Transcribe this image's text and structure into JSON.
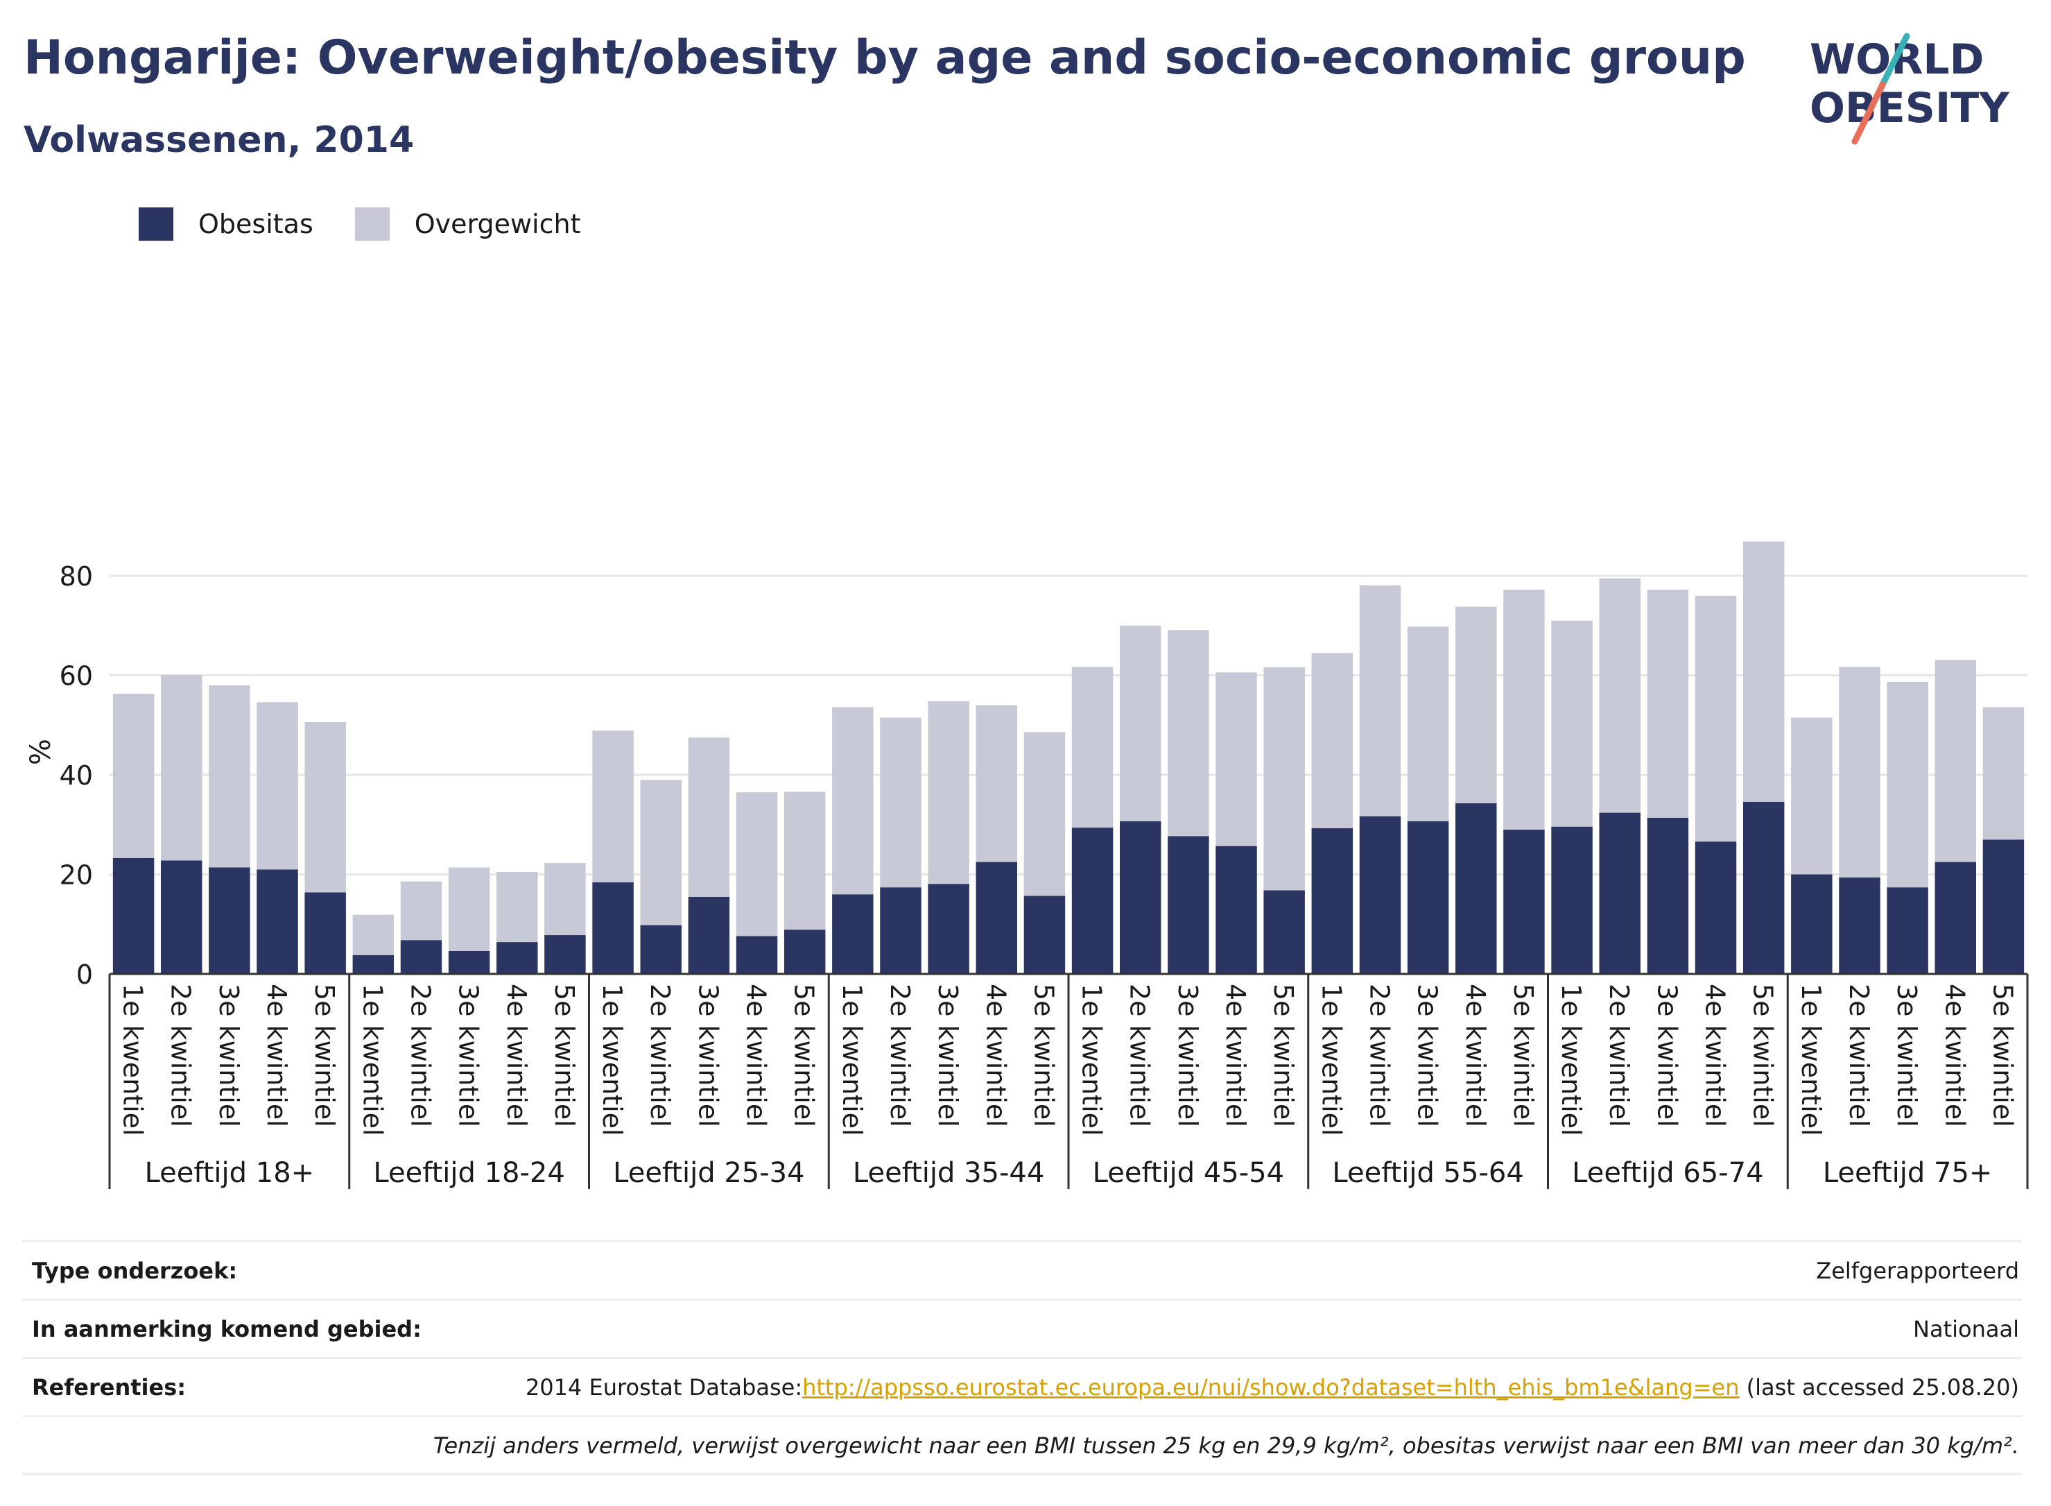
{
  "header": {
    "title": "Hongarije: Overweight/obesity by age and socio-economic group",
    "subtitle": "Volwassenen, 2014",
    "logo_text_line1": "WORLD",
    "logo_text_line2": "OBESITY"
  },
  "legend": {
    "obesity_label": "Obesitas",
    "overweight_label": "Overgewicht"
  },
  "colors": {
    "obesity": "#2a3561",
    "overweight": "#c8c9d6",
    "grid": "#e6e6e6",
    "link": "#d8a000",
    "logo_slash_teal": "#3ab0b8",
    "logo_slash_coral": "#e8705a"
  },
  "chart_data": {
    "type": "bar",
    "stacked": true,
    "ylabel": "%",
    "ylim": [
      0,
      92
    ],
    "yticks": [
      0,
      20,
      40,
      60,
      80
    ],
    "grid": true,
    "legend_position": "top-left",
    "groups": [
      "Leeftijd 18+",
      "Leeftijd 18-24",
      "Leeftijd 25-34",
      "Leeftijd 35-44",
      "Leeftijd 45-54",
      "Leeftijd 55-64",
      "Leeftijd 65-74",
      "Leeftijd 75+"
    ],
    "categories": [
      "1e kwentiel",
      "2e kwintiel",
      "3e kwintiel",
      "4e kwintiel",
      "5e kwintiel"
    ],
    "series": [
      {
        "name": "Obesitas",
        "values": [
          [
            23.3,
            22.8,
            21.4,
            21.0,
            16.4
          ],
          [
            3.8,
            6.8,
            4.6,
            6.4,
            7.8
          ],
          [
            18.4,
            9.8,
            15.5,
            7.6,
            8.9
          ],
          [
            16.0,
            17.4,
            18.1,
            22.5,
            15.7
          ],
          [
            29.4,
            30.7,
            27.7,
            25.7,
            16.8
          ],
          [
            29.3,
            31.7,
            30.7,
            34.3,
            29.0
          ],
          [
            29.6,
            32.4,
            31.4,
            26.6,
            34.6
          ],
          [
            20.0,
            19.4,
            17.4,
            22.5,
            27.0
          ]
        ]
      },
      {
        "name": "Overgewicht",
        "values": [
          [
            33.0,
            37.3,
            36.6,
            33.6,
            34.2
          ],
          [
            8.1,
            11.8,
            16.8,
            14.1,
            14.5
          ],
          [
            30.5,
            29.2,
            32.0,
            28.9,
            27.7
          ],
          [
            37.6,
            34.1,
            36.7,
            31.5,
            32.9
          ],
          [
            32.3,
            39.3,
            41.4,
            34.9,
            44.8
          ],
          [
            35.2,
            46.4,
            39.1,
            39.5,
            48.2
          ],
          [
            41.4,
            47.1,
            45.8,
            49.4,
            52.3
          ],
          [
            31.5,
            42.3,
            41.3,
            40.6,
            26.6
          ]
        ]
      }
    ]
  },
  "footer": {
    "rows": [
      {
        "label": "Type onderzoek:",
        "value": "Zelfgerapporteerd"
      },
      {
        "label": "In aanmerking komend gebied:",
        "value": "Nationaal"
      }
    ],
    "references_label": "Referenties:",
    "references_prefix": "2014 Eurostat Database:",
    "references_link": "http://appsso.eurostat.ec.europa.eu/nui/show.do?dataset=hlth_ehis_bm1e&lang=en",
    "references_suffix": " (last accessed 25.08.20)",
    "note": "Tenzij anders vermeld, verwijst overgewicht naar een BMI tussen 25 kg en 29,9 kg/m², obesitas verwijst naar een BMI van meer dan 30 kg/m²."
  }
}
